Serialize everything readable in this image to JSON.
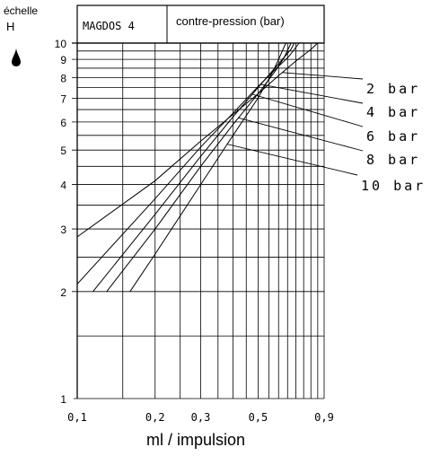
{
  "header": {
    "scale_label": "échelle",
    "scale_unit": "H",
    "model": "MAGDOS 4",
    "series_title": "contre-pression (bar)"
  },
  "icons": {
    "drop": "drop-icon"
  },
  "chart_data": {
    "type": "line",
    "x_scale": "log",
    "y_scale": "log",
    "xlim": [
      0.1,
      0.9
    ],
    "ylim": [
      1,
      10
    ],
    "xlabel": "ml / impulsion",
    "ylabel": "échelle H",
    "x_tick_labels": [
      "0,1",
      "0,2",
      "0,3",
      "0,5",
      "0,9"
    ],
    "x_tick_values": [
      0.1,
      0.2,
      0.3,
      0.5,
      0.9
    ],
    "y_tick_labels": [
      "1",
      "2",
      "3",
      "4",
      "5",
      "6",
      "7",
      "8",
      "9",
      "10"
    ],
    "y_tick_values": [
      1,
      2,
      3,
      4,
      5,
      6,
      7,
      8,
      9,
      10
    ],
    "grid": true,
    "legend": "right",
    "series": [
      {
        "name": "2 bar",
        "points": [
          [
            0.1,
            2.85
          ],
          [
            0.2,
            4.1
          ],
          [
            0.3,
            5.3
          ],
          [
            0.4,
            6.3
          ],
          [
            0.5,
            7.2
          ],
          [
            0.6,
            8.1
          ],
          [
            0.7,
            8.9
          ],
          [
            0.8,
            9.6
          ],
          [
            0.85,
            10.0
          ]
        ]
      },
      {
        "name": "4 bar",
        "points": [
          [
            0.1,
            2.1
          ],
          [
            0.2,
            3.65
          ],
          [
            0.3,
            5.1
          ],
          [
            0.4,
            6.35
          ],
          [
            0.5,
            7.55
          ],
          [
            0.6,
            8.6
          ],
          [
            0.66,
            9.2
          ],
          [
            0.72,
            10.0
          ]
        ]
      },
      {
        "name": "6 bar",
        "points": [
          [
            0.115,
            2.0
          ],
          [
            0.2,
            3.3
          ],
          [
            0.3,
            4.8
          ],
          [
            0.4,
            6.2
          ],
          [
            0.5,
            7.5
          ],
          [
            0.6,
            8.75
          ],
          [
            0.67,
            9.6
          ],
          [
            0.69,
            10.0
          ]
        ]
      },
      {
        "name": "8 bar",
        "points": [
          [
            0.13,
            2.0
          ],
          [
            0.2,
            3.0
          ],
          [
            0.3,
            4.5
          ],
          [
            0.4,
            5.9
          ],
          [
            0.5,
            7.2
          ],
          [
            0.58,
            8.3
          ],
          [
            0.63,
            9.1
          ],
          [
            0.67,
            10.0
          ]
        ]
      },
      {
        "name": "10 bar",
        "points": [
          [
            0.16,
            2.0
          ],
          [
            0.2,
            2.55
          ],
          [
            0.3,
            4.0
          ],
          [
            0.4,
            5.5
          ],
          [
            0.5,
            7.0
          ],
          [
            0.57,
            8.3
          ],
          [
            0.6,
            9.0
          ],
          [
            0.64,
            10.0
          ]
        ]
      }
    ]
  }
}
